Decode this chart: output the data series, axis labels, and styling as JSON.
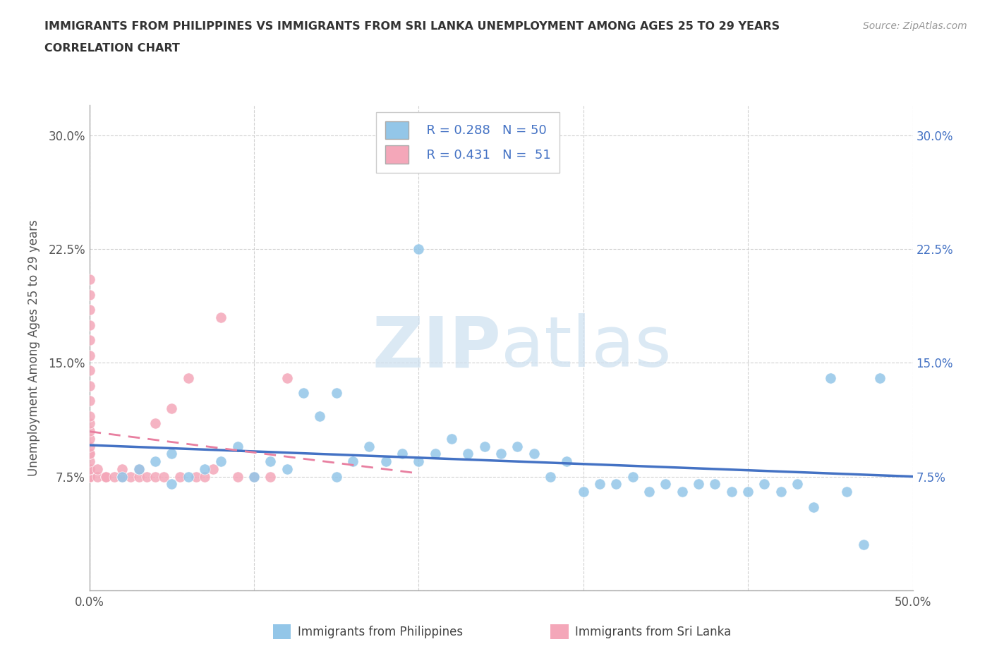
{
  "title_line1": "IMMIGRANTS FROM PHILIPPINES VS IMMIGRANTS FROM SRI LANKA UNEMPLOYMENT AMONG AGES 25 TO 29 YEARS",
  "title_line2": "CORRELATION CHART",
  "source_text": "Source: ZipAtlas.com",
  "ylabel": "Unemployment Among Ages 25 to 29 years",
  "xlim": [
    0.0,
    0.5
  ],
  "ylim": [
    0.0,
    0.32
  ],
  "philippines_R": 0.288,
  "philippines_N": 50,
  "srilanka_R": 0.431,
  "srilanka_N": 51,
  "philippines_color": "#93C6E8",
  "srilanka_color": "#F4A7B9",
  "philippines_line_color": "#4472C4",
  "srilanka_line_color": "#E87FA0",
  "watermark_color": "#cde0f0",
  "philippines_x": [
    0.02,
    0.03,
    0.04,
    0.05,
    0.05,
    0.06,
    0.07,
    0.08,
    0.09,
    0.1,
    0.11,
    0.12,
    0.13,
    0.14,
    0.15,
    0.15,
    0.16,
    0.17,
    0.18,
    0.19,
    0.2,
    0.2,
    0.21,
    0.22,
    0.23,
    0.24,
    0.25,
    0.26,
    0.27,
    0.28,
    0.29,
    0.3,
    0.31,
    0.32,
    0.33,
    0.34,
    0.35,
    0.36,
    0.37,
    0.38,
    0.39,
    0.4,
    0.41,
    0.42,
    0.43,
    0.44,
    0.45,
    0.46,
    0.47,
    0.48
  ],
  "philippines_y": [
    0.075,
    0.08,
    0.085,
    0.07,
    0.09,
    0.075,
    0.08,
    0.085,
    0.095,
    0.075,
    0.085,
    0.08,
    0.13,
    0.115,
    0.075,
    0.13,
    0.085,
    0.095,
    0.085,
    0.09,
    0.225,
    0.085,
    0.09,
    0.1,
    0.09,
    0.095,
    0.09,
    0.095,
    0.09,
    0.075,
    0.085,
    0.065,
    0.07,
    0.07,
    0.075,
    0.065,
    0.07,
    0.065,
    0.07,
    0.07,
    0.065,
    0.065,
    0.07,
    0.065,
    0.07,
    0.055,
    0.14,
    0.065,
    0.03,
    0.14
  ],
  "srilanka_x": [
    0.0,
    0.0,
    0.0,
    0.0,
    0.0,
    0.0,
    0.0,
    0.0,
    0.0,
    0.0,
    0.0,
    0.0,
    0.0,
    0.0,
    0.0,
    0.0,
    0.0,
    0.0,
    0.0,
    0.0,
    0.0,
    0.0,
    0.0,
    0.0,
    0.0,
    0.005,
    0.005,
    0.01,
    0.01,
    0.01,
    0.015,
    0.02,
    0.02,
    0.025,
    0.03,
    0.03,
    0.035,
    0.04,
    0.04,
    0.045,
    0.05,
    0.055,
    0.06,
    0.065,
    0.07,
    0.075,
    0.08,
    0.09,
    0.1,
    0.11,
    0.12
  ],
  "srilanka_y": [
    0.075,
    0.075,
    0.075,
    0.075,
    0.075,
    0.08,
    0.08,
    0.08,
    0.085,
    0.09,
    0.09,
    0.095,
    0.1,
    0.105,
    0.11,
    0.115,
    0.125,
    0.135,
    0.145,
    0.155,
    0.165,
    0.175,
    0.185,
    0.195,
    0.205,
    0.075,
    0.08,
    0.075,
    0.075,
    0.075,
    0.075,
    0.075,
    0.08,
    0.075,
    0.075,
    0.08,
    0.075,
    0.075,
    0.11,
    0.075,
    0.12,
    0.075,
    0.14,
    0.075,
    0.075,
    0.08,
    0.18,
    0.075,
    0.075,
    0.075,
    0.14
  ]
}
